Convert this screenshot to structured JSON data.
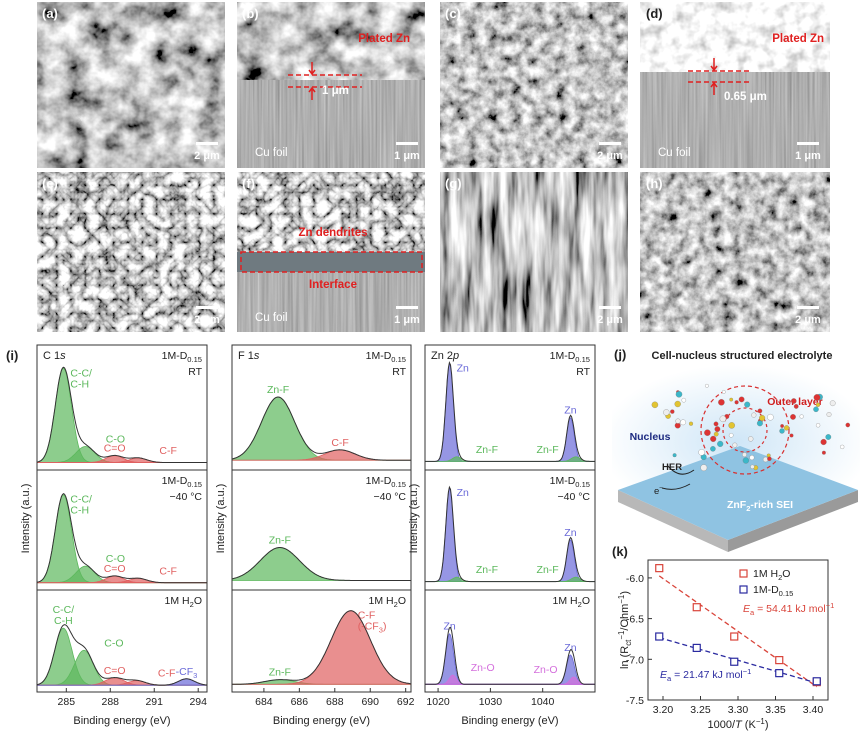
{
  "sem": {
    "panels": [
      {
        "label": "(a)",
        "scale_bar": "2 μm"
      },
      {
        "label": "(b)",
        "scale_bar": "1 μm",
        "annotations": [
          "Plated Zn",
          "1 μm",
          "Cu foil"
        ]
      },
      {
        "label": "(c)",
        "scale_bar": "2 μm"
      },
      {
        "label": "(d)",
        "scale_bar": "1 μm",
        "annotations": [
          "Plated Zn",
          "0.65 μm",
          "Cu foil"
        ]
      },
      {
        "label": "(e)",
        "scale_bar": "2 μm"
      },
      {
        "label": "(f)",
        "scale_bar": "1 μm",
        "annotations": [
          "Zn dendrites",
          "Interface",
          "Cu foil"
        ]
      },
      {
        "label": "(g)",
        "scale_bar": "2 μm"
      },
      {
        "label": "(h)",
        "scale_bar": "2 μm"
      }
    ]
  },
  "xps": {
    "label": "(i)",
    "columns": [
      {
        "title": [
          "C 1",
          {
            "i": "s"
          }
        ],
        "x_label": "Binding energy (eV)",
        "y_label": "Intensity (a.u.)",
        "xlim": [
          283,
          294.6
        ],
        "xticks": [
          285,
          288,
          291,
          294
        ],
        "subplots": [
          {
            "sample": [
              "1M-D",
              {
                "sub": "0.15"
              }
            ],
            "condition": "RT",
            "ylim": [
              0,
              1
            ],
            "baseline": 0.03,
            "peaks": [
              {
                "label": [
                  [
                    "C-C/"
                  ],
                  [
                    "C-H"
                  ]
                ],
                "center": 284.8,
                "height": 0.82,
                "fwhm": 1.3,
                "color": "#5cb85c"
              },
              {
                "label": [
                  [
                    "C-O"
                  ]
                ],
                "center": 286.3,
                "height": 0.14,
                "fwhm": 1.5,
                "color": "#5cb85c"
              },
              {
                "label": [
                  [
                    "C=O"
                  ]
                ],
                "center": 288.3,
                "height": 0.06,
                "fwhm": 1.4,
                "color": "#e06060"
              },
              {
                "label": [
                  [
                    "C-F"
                  ]
                ],
                "center": 289.9,
                "height": 0.04,
                "fwhm": 1.4,
                "color": "#e06060"
              }
            ]
          },
          {
            "sample": [
              "1M-D",
              {
                "sub": "0.15"
              }
            ],
            "condition": "−40 °C",
            "ylim": [
              0,
              1
            ],
            "baseline": 0.03,
            "peaks": [
              {
                "label": [
                  [
                    "C-C/"
                  ],
                  [
                    "C-H"
                  ]
                ],
                "center": 284.8,
                "height": 0.8,
                "fwhm": 1.3,
                "color": "#5cb85c"
              },
              {
                "label": [
                  [
                    "C-O"
                  ]
                ],
                "center": 286.3,
                "height": 0.15,
                "fwhm": 1.5,
                "color": "#5cb85c"
              },
              {
                "label": [
                  [
                    "C=O"
                  ]
                ],
                "center": 288.3,
                "height": 0.06,
                "fwhm": 1.4,
                "color": "#e06060"
              },
              {
                "label": [
                  [
                    "C-F"
                  ]
                ],
                "center": 289.9,
                "height": 0.04,
                "fwhm": 1.4,
                "color": "#e06060"
              }
            ]
          },
          {
            "sample": [
              "1M H",
              {
                "sub": "2"
              },
              "O"
            ],
            "ylim": [
              0,
              1
            ],
            "baseline": 0.03,
            "peaks": [
              {
                "label": [
                  [
                    "C-C/"
                  ],
                  [
                    "C-H"
                  ]
                ],
                "center": 284.8,
                "height": 0.62,
                "fwhm": 1.4,
                "color": "#5cb85c"
              },
              {
                "label": [
                  [
                    "C-O"
                  ]
                ],
                "center": 286.2,
                "height": 0.38,
                "fwhm": 1.5,
                "color": "#5cb85c"
              },
              {
                "label": [
                  [
                    "C=O"
                  ]
                ],
                "center": 288.3,
                "height": 0.08,
                "fwhm": 1.5,
                "color": "#e06060"
              },
              {
                "label": [
                  [
                    "C-F"
                  ]
                ],
                "center": 289.8,
                "height": 0.05,
                "fwhm": 1.4,
                "color": "#e06060"
              },
              {
                "label": [
                  [
                    "-CF",
                    {
                      "sub": "3"
                    }
                  ]
                ],
                "center": 293.2,
                "height": 0.07,
                "fwhm": 1.3,
                "color": "#6a6ad8"
              }
            ]
          }
        ]
      },
      {
        "title": [
          "F 1",
          {
            "i": "s"
          }
        ],
        "x_label": "Binding energy (eV)",
        "y_label": "Intensity (a.u.)",
        "xlim": [
          682.2,
          692.3
        ],
        "xticks": [
          684,
          686,
          688,
          690,
          692
        ],
        "subplots": [
          {
            "sample": [
              "1M-D",
              {
                "sub": "0.15"
              }
            ],
            "condition": "RT",
            "ylim": [
              0,
              1
            ],
            "baseline": 0.05,
            "peaks": [
              {
                "label": [
                  [
                    "Zn-F"
                  ]
                ],
                "center": 684.8,
                "height": 0.55,
                "fwhm": 2.2,
                "color": "#5cb85c"
              },
              {
                "label": [
                  [
                    "C-F"
                  ]
                ],
                "center": 688.3,
                "height": 0.09,
                "fwhm": 2.0,
                "color": "#e06060"
              }
            ]
          },
          {
            "sample": [
              "1M-D",
              {
                "sub": "0.15"
              }
            ],
            "condition": "−40 °C",
            "ylim": [
              0,
              1
            ],
            "baseline": 0.05,
            "peaks": [
              {
                "label": [
                  [
                    "Zn-F"
                  ]
                ],
                "center": 684.9,
                "height": 0.3,
                "fwhm": 2.6,
                "color": "#5cb85c"
              }
            ]
          },
          {
            "sample": [
              "1M H",
              {
                "sub": "2"
              },
              "O"
            ],
            "ylim": [
              0,
              1
            ],
            "baseline": 0.04,
            "peaks": [
              {
                "label": [
                  [
                    "Zn-F"
                  ]
                ],
                "center": 684.9,
                "height": 0.05,
                "fwhm": 2.0,
                "color": "#5cb85c"
              },
              {
                "label": [
                  [
                    "C-F"
                  ],
                  [
                    "(-CF",
                    {
                      "sub": "3"
                    },
                    ")"
                  ]
                ],
                "center": 688.9,
                "height": 0.8,
                "fwhm": 2.6,
                "color": "#e06060"
              }
            ]
          }
        ]
      },
      {
        "title": [
          "Zn 2",
          {
            "i": "p"
          }
        ],
        "x_label": "Binding energy (eV)",
        "y_label": "Intensity (a.u.)",
        "xlim": [
          1017.5,
          1050
        ],
        "xticks": [
          1020,
          1030,
          1040
        ],
        "subplots": [
          {
            "sample": [
              "1M-D",
              {
                "sub": "0.15"
              }
            ],
            "condition": "RT",
            "ylim": [
              0,
              1
            ],
            "baseline": 0.04,
            "peaks": [
              {
                "label": [
                  [
                    "Zn"
                  ]
                ],
                "center": 1022.2,
                "height": 0.85,
                "fwhm": 1.7,
                "color": "#6a6ad8"
              },
              {
                "label": [
                  [
                    "Zn-F"
                  ]
                ],
                "center": 1023.6,
                "height": 0.04,
                "fwhm": 2.0,
                "color": "#5cb85c"
              },
              {
                "label": [
                  [
                    "Zn"
                  ]
                ],
                "center": 1045.3,
                "height": 0.38,
                "fwhm": 1.7,
                "color": "#6a6ad8"
              },
              {
                "label": [
                  [
                    "Zn-F"
                  ]
                ],
                "center": 1046.3,
                "height": 0.04,
                "fwhm": 2.0,
                "color": "#5cb85c"
              }
            ]
          },
          {
            "sample": [
              "1M-D",
              {
                "sub": "0.15"
              }
            ],
            "condition": "−40 °C",
            "ylim": [
              0,
              1
            ],
            "baseline": 0.04,
            "peaks": [
              {
                "label": [
                  [
                    "Zn"
                  ]
                ],
                "center": 1022.2,
                "height": 0.85,
                "fwhm": 1.7,
                "color": "#6a6ad8"
              },
              {
                "label": [
                  [
                    "Zn-F"
                  ]
                ],
                "center": 1023.6,
                "height": 0.04,
                "fwhm": 2.0,
                "color": "#5cb85c"
              },
              {
                "label": [
                  [
                    "Zn"
                  ]
                ],
                "center": 1045.3,
                "height": 0.38,
                "fwhm": 1.7,
                "color": "#6a6ad8"
              },
              {
                "label": [
                  [
                    "Zn-F"
                  ]
                ],
                "center": 1046.3,
                "height": 0.04,
                "fwhm": 2.0,
                "color": "#5cb85c"
              }
            ]
          },
          {
            "sample": [
              "1M H",
              {
                "sub": "2"
              },
              "O"
            ],
            "ylim": [
              0,
              1
            ],
            "baseline": 0.04,
            "peaks": [
              {
                "label": [
                  [
                    "Zn"
                  ]
                ],
                "center": 1022.2,
                "height": 0.55,
                "fwhm": 1.8,
                "color": "#6a6ad8"
              },
              {
                "label": [
                  [
                    "Zn-O"
                  ]
                ],
                "center": 1022.8,
                "height": 0.1,
                "fwhm": 1.6,
                "color": "#d46fdc"
              },
              {
                "label": [
                  [
                    "Zn"
                  ]
                ],
                "center": 1045.3,
                "height": 0.32,
                "fwhm": 1.8,
                "color": "#6a6ad8"
              },
              {
                "label": [
                  [
                    "Zn-O"
                  ]
                ],
                "center": 1045.9,
                "height": 0.08,
                "fwhm": 1.6,
                "color": "#d46fdc"
              }
            ]
          }
        ]
      }
    ]
  },
  "schematic": {
    "label": "(j)",
    "title": "Cell-nucleus structured electrolyte",
    "outer_layer": "Outer layer",
    "nucleus": "Nucleus",
    "her": "HER",
    "electron": [
      "e",
      {
        "sup": "−"
      }
    ],
    "sei": [
      "ZnF",
      {
        "sub": "2"
      },
      "-rich SEI"
    ]
  },
  "chart_data": {
    "type": "scatter",
    "label": "(k)",
    "x_label": [
      "1000/",
      {
        "i": "T"
      },
      " (K",
      {
        "sup": "−1"
      },
      ")"
    ],
    "y_label": [
      "ln (R",
      {
        "sub": "ct"
      },
      {
        "sup": "−1"
      },
      "/Ohm",
      {
        "sup": "−1"
      },
      ")"
    ],
    "xlim": [
      3.18,
      3.42
    ],
    "ylim": [
      -7.5,
      -5.78
    ],
    "xticks": [
      {
        "value": 3.2,
        "label": "3.20"
      },
      3.25,
      {
        "value": 3.3,
        "label": "3.30"
      },
      3.35,
      {
        "value": 3.4,
        "label": "3.40"
      }
    ],
    "yticks": [
      {
        "value": -6,
        "label": "-6.0"
      },
      -6.5,
      {
        "value": -7,
        "label": "-7.0"
      },
      -7.5
    ],
    "legend": "upper right",
    "x": [
      3.195,
      3.245,
      3.295,
      3.355,
      3.405
    ],
    "series": [
      {
        "name": [
          "1M H",
          {
            "sub": "2"
          },
          "O"
        ],
        "color": "#d9443a",
        "marker": "square",
        "fit": "dashed",
        "values": [
          -5.88,
          -6.36,
          -6.72,
          -7.01,
          -7.28
        ]
      },
      {
        "name": [
          "1M-D",
          {
            "sub": "0.15"
          }
        ],
        "color": "#2a2aa0",
        "marker": "square",
        "fit": "dashed",
        "values": [
          -6.72,
          -6.86,
          -7.03,
          -7.17,
          -7.27
        ]
      }
    ],
    "annotations": [
      {
        "text": [
          {
            "i": "E"
          },
          {
            "sub": "a"
          },
          " = 54.41 kJ mol",
          {
            "sup": "−1"
          }
        ],
        "color": "#d9443a"
      },
      {
        "text": [
          {
            "i": "E"
          },
          {
            "sub": "a"
          },
          " = 21.47 kJ mol",
          {
            "sup": "−1"
          }
        ],
        "color": "#2a2aa0"
      }
    ]
  }
}
